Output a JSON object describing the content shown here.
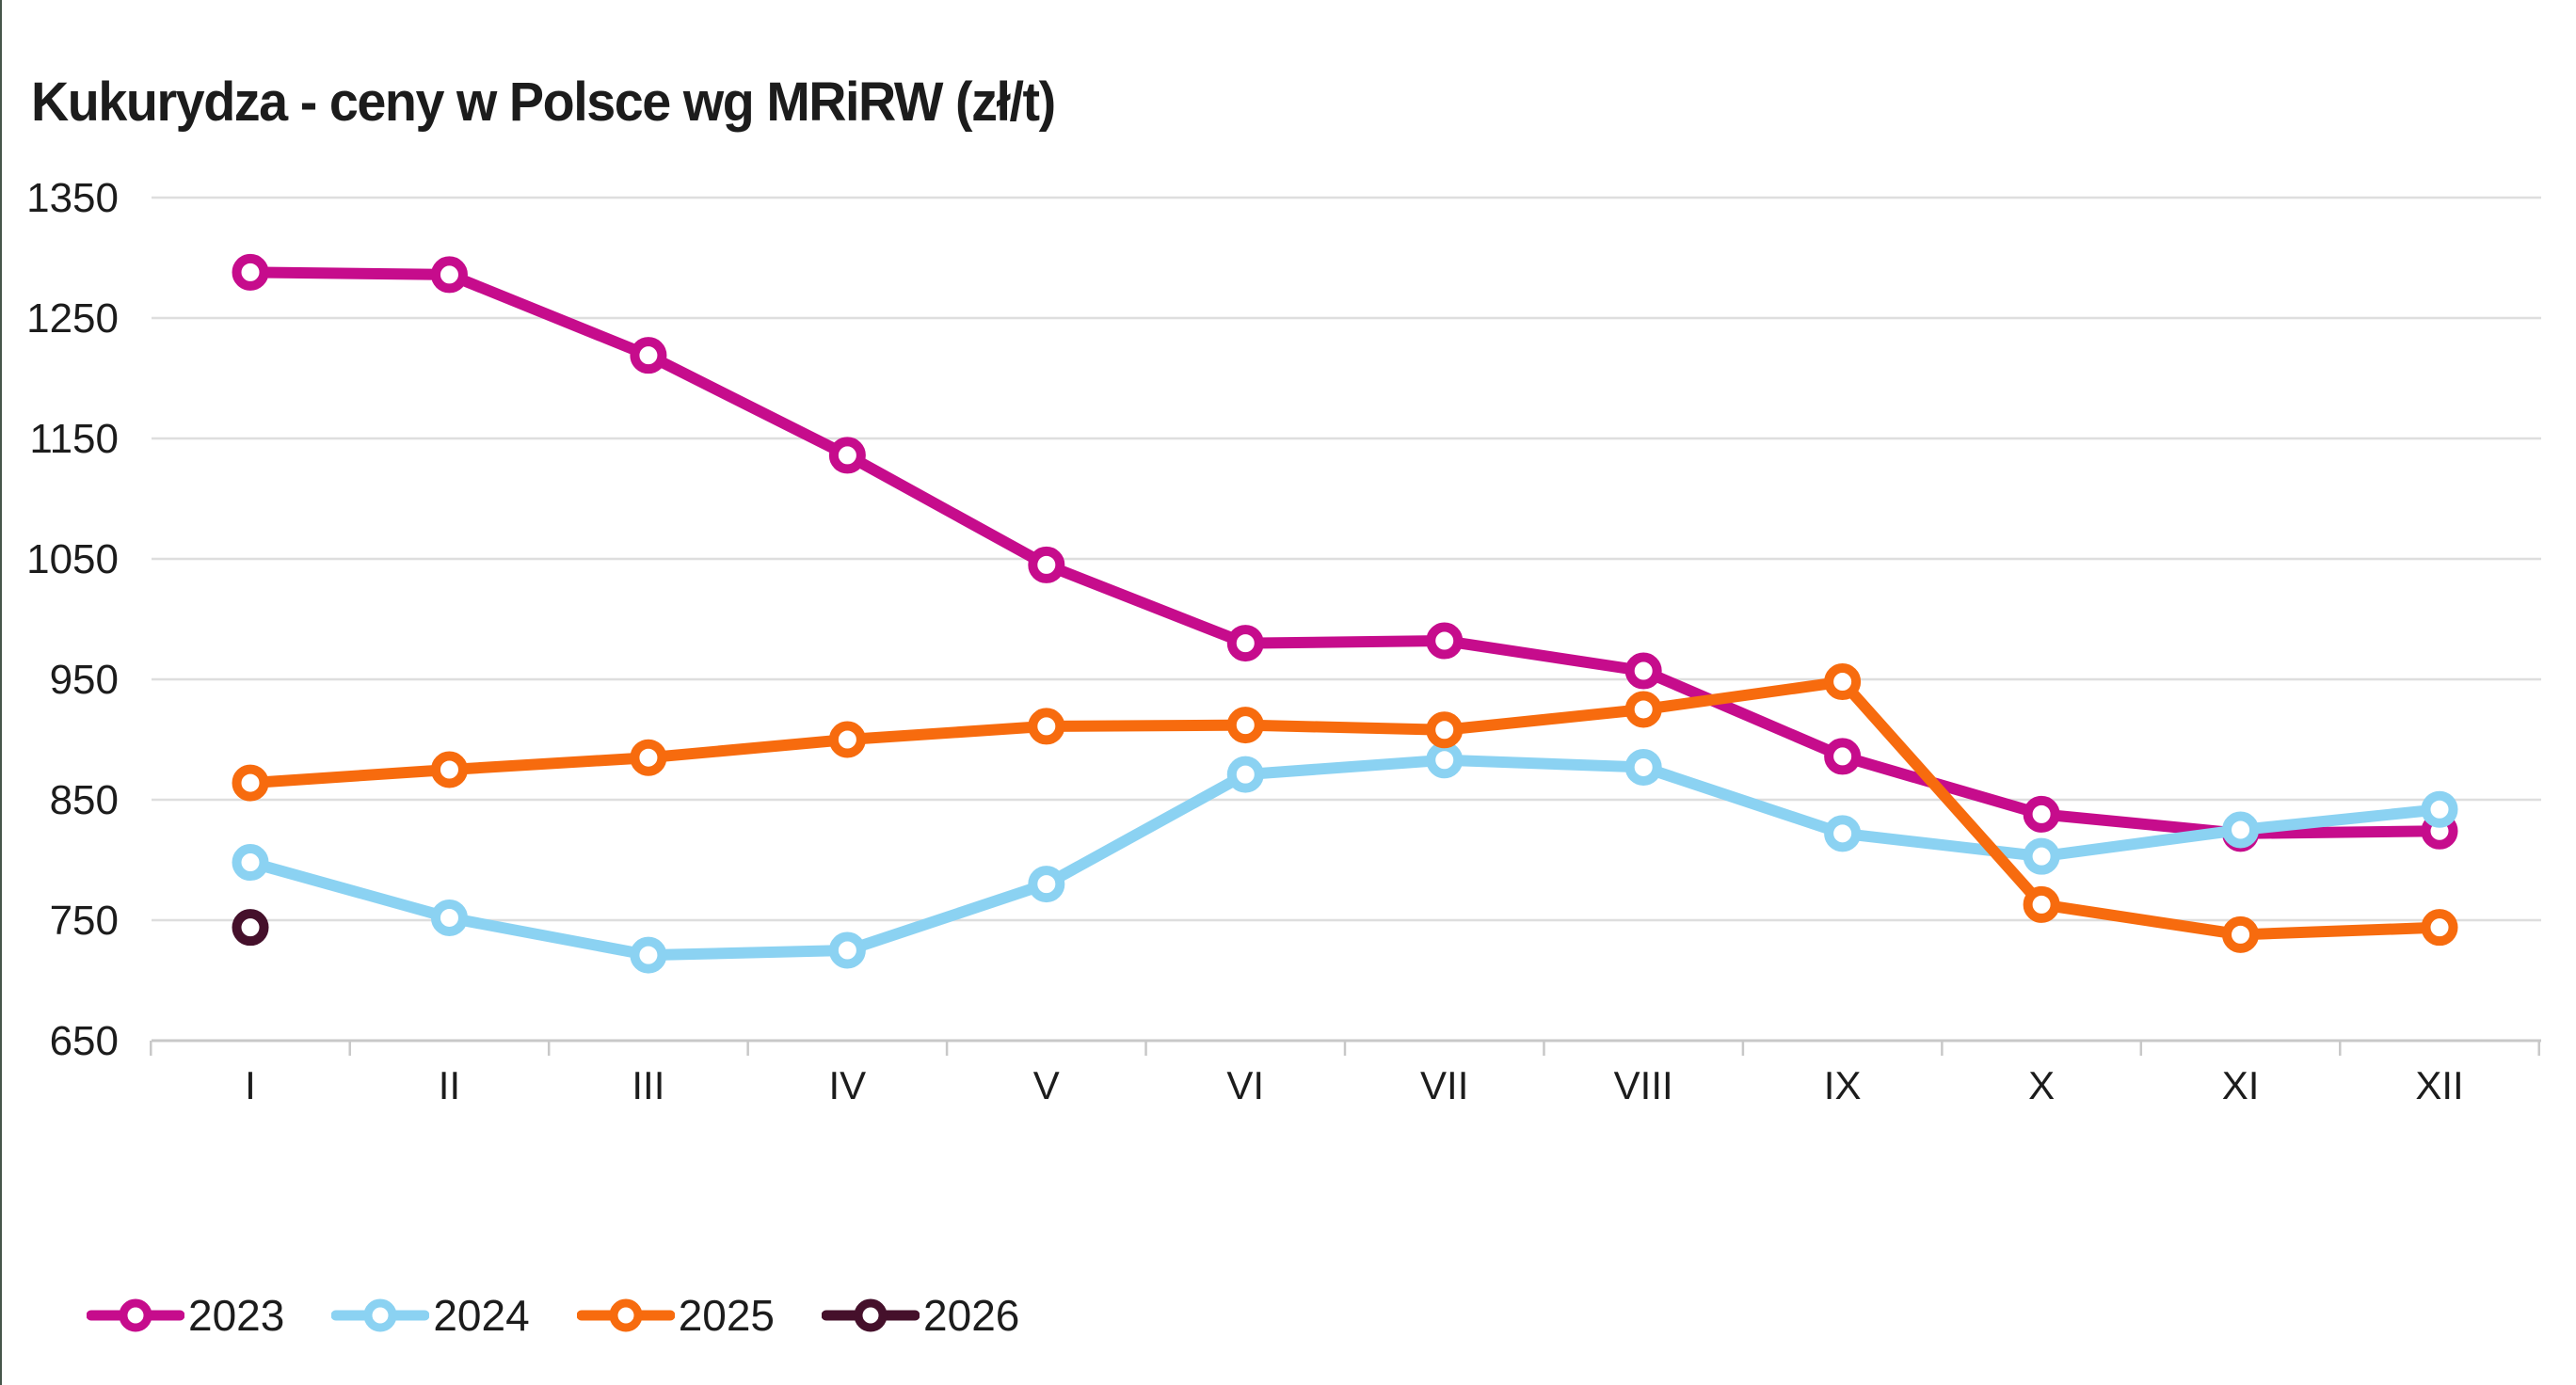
{
  "window": {
    "left_edge_color": "#46564a",
    "background": "#ffffff"
  },
  "chart_data": {
    "type": "line",
    "title": "Kukurydza - ceny w Polsce wg MRiRW (zł/t)",
    "unit": "zł/t",
    "categories": [
      "I",
      "II",
      "III",
      "IV",
      "V",
      "VI",
      "VII",
      "VIII",
      "IX",
      "X",
      "XI",
      "XII"
    ],
    "y_ticks": [
      650,
      750,
      850,
      950,
      1050,
      1150,
      1250,
      1350
    ],
    "ylim": [
      650,
      1350
    ],
    "grid": "horizontal",
    "legend_position": "bottom-left",
    "colors": {
      "grid": "#dedede",
      "axis": "#c8c8c8",
      "text": "#1c1c1c"
    },
    "series": [
      {
        "name": "2023",
        "color": "#c60c8c",
        "values": [
          1288,
          1286,
          1219,
          1136,
          1045,
          980,
          982,
          957,
          886,
          838,
          822,
          824
        ]
      },
      {
        "name": "2024",
        "color": "#8bd2f2",
        "values": [
          798,
          752,
          721,
          725,
          780,
          871,
          883,
          877,
          822,
          803,
          825,
          842
        ]
      },
      {
        "name": "2025",
        "color": "#f76b0e",
        "values": [
          864,
          875,
          885,
          900,
          911,
          912,
          908,
          925,
          948,
          763,
          738,
          744
        ]
      },
      {
        "name": "2026",
        "color": "#45102b",
        "values": [
          744
        ]
      }
    ]
  }
}
